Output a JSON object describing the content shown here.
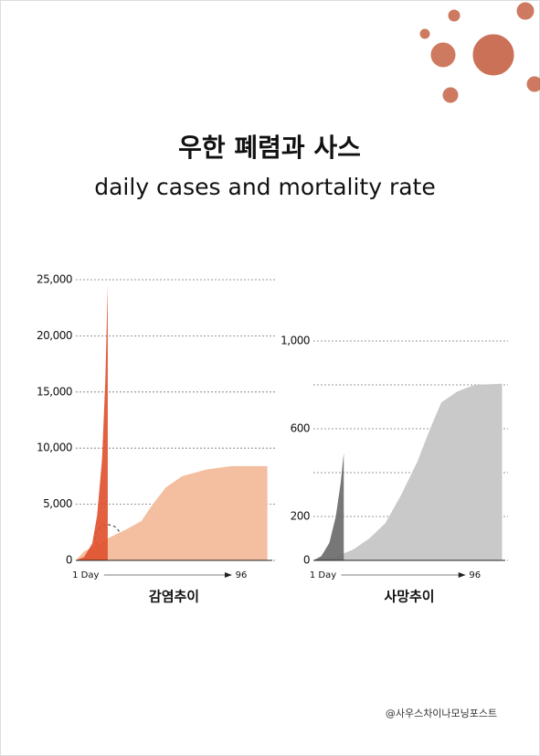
{
  "title": "우한 폐렴과 사스",
  "subtitle": "daily cases and mortality rate",
  "source": "@사우스차이나모닝포스트",
  "chart_data": [
    {
      "type": "area",
      "title": "감염추이",
      "xlim": [
        -5,
        115
      ],
      "xticks": [
        {
          "value": 1,
          "label": "1 Day"
        },
        96
      ],
      "ylim": [
        0,
        25000
      ],
      "yticks": [
        0,
        {
          "value": 5000,
          "label": "5,000"
        },
        {
          "value": 10000,
          "label": "10,000"
        },
        {
          "value": 15000,
          "label": "15,000"
        },
        {
          "value": 20000,
          "label": "20,000"
        },
        {
          "value": 25000,
          "label": "25,000"
        }
      ],
      "grid": true,
      "series": [
        {
          "color": "#f4bfa0",
          "x": [
            -5,
            0,
            10,
            15,
            25,
            35,
            42,
            50,
            60,
            75,
            90,
            112
          ],
          "values": [
            0,
            800,
            1500,
            2000,
            2700,
            3500,
            5000,
            6500,
            7500,
            8100,
            8400,
            8400
          ]
        },
        {
          "color": "#e0532f",
          "x": [
            -5,
            0,
            5,
            8,
            11,
            13,
            14.5
          ],
          "values": [
            0,
            300,
            1500,
            4000,
            9000,
            16000,
            24500
          ]
        }
      ]
    },
    {
      "type": "area",
      "title": "사망추이",
      "xlim": [
        -5,
        115
      ],
      "xticks": [
        {
          "value": 1,
          "label": "1 Day"
        },
        96
      ],
      "ylim": [
        0,
        1000
      ],
      "yticks": [
        0,
        200,
        {
          "value": 400,
          "label": null
        },
        600,
        {
          "value": 800,
          "label": null
        },
        {
          "value": 1000,
          "label": "1,000"
        }
      ],
      "grid": true,
      "series": [
        {
          "color": "#c9c9c9",
          "x": [
            -5,
            10,
            20,
            30,
            40,
            50,
            60,
            68,
            75,
            85,
            96,
            113
          ],
          "values": [
            0,
            20,
            50,
            100,
            170,
            300,
            450,
            600,
            720,
            770,
            800,
            805
          ]
        },
        {
          "color": "#6b6b6b",
          "x": [
            -5,
            0,
            5,
            9,
            12,
            14
          ],
          "values": [
            0,
            20,
            80,
            200,
            350,
            490
          ]
        }
      ]
    }
  ]
}
